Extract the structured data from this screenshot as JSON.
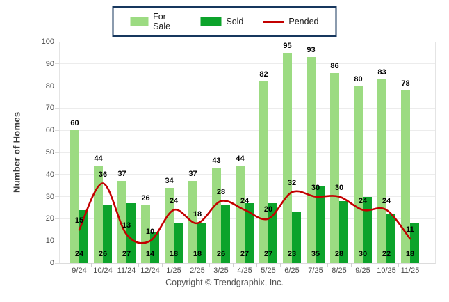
{
  "footer": {
    "copyright": "Copyright © Trendgraphix, Inc."
  },
  "colors": {
    "for_sale": "#9cdb82",
    "sold": "#0ca32b",
    "pended": "#c30000",
    "legend_border": "#17375e"
  },
  "chart_data": {
    "type": "bar",
    "title": "",
    "categories": [
      "9/24",
      "10/24",
      "11/24",
      "12/24",
      "1/25",
      "2/25",
      "3/25",
      "4/25",
      "5/25",
      "6/25",
      "7/25",
      "8/25",
      "9/25",
      "10/25",
      "11/25"
    ],
    "series": [
      {
        "name": "For Sale",
        "type": "bar",
        "color": "#9cdb82",
        "values": [
          60,
          44,
          37,
          26,
          34,
          37,
          43,
          44,
          82,
          95,
          93,
          86,
          80,
          83,
          78
        ]
      },
      {
        "name": "Sold",
        "type": "bar",
        "color": "#0ca32b",
        "values": [
          24,
          26,
          27,
          14,
          18,
          18,
          26,
          27,
          27,
          23,
          35,
          28,
          30,
          22,
          18
        ]
      },
      {
        "name": "Pended",
        "type": "line",
        "color": "#c30000",
        "values": [
          15,
          36,
          13,
          10,
          24,
          18,
          28,
          24,
          20,
          32,
          30,
          30,
          24,
          24,
          11
        ]
      }
    ],
    "xlabel": "",
    "ylabel": "Number of Homes",
    "ylim": [
      0,
      100
    ],
    "ytick_step": 10,
    "grid": true,
    "legend_position": "top-center",
    "data_labels": true,
    "line_smoothing": true
  }
}
